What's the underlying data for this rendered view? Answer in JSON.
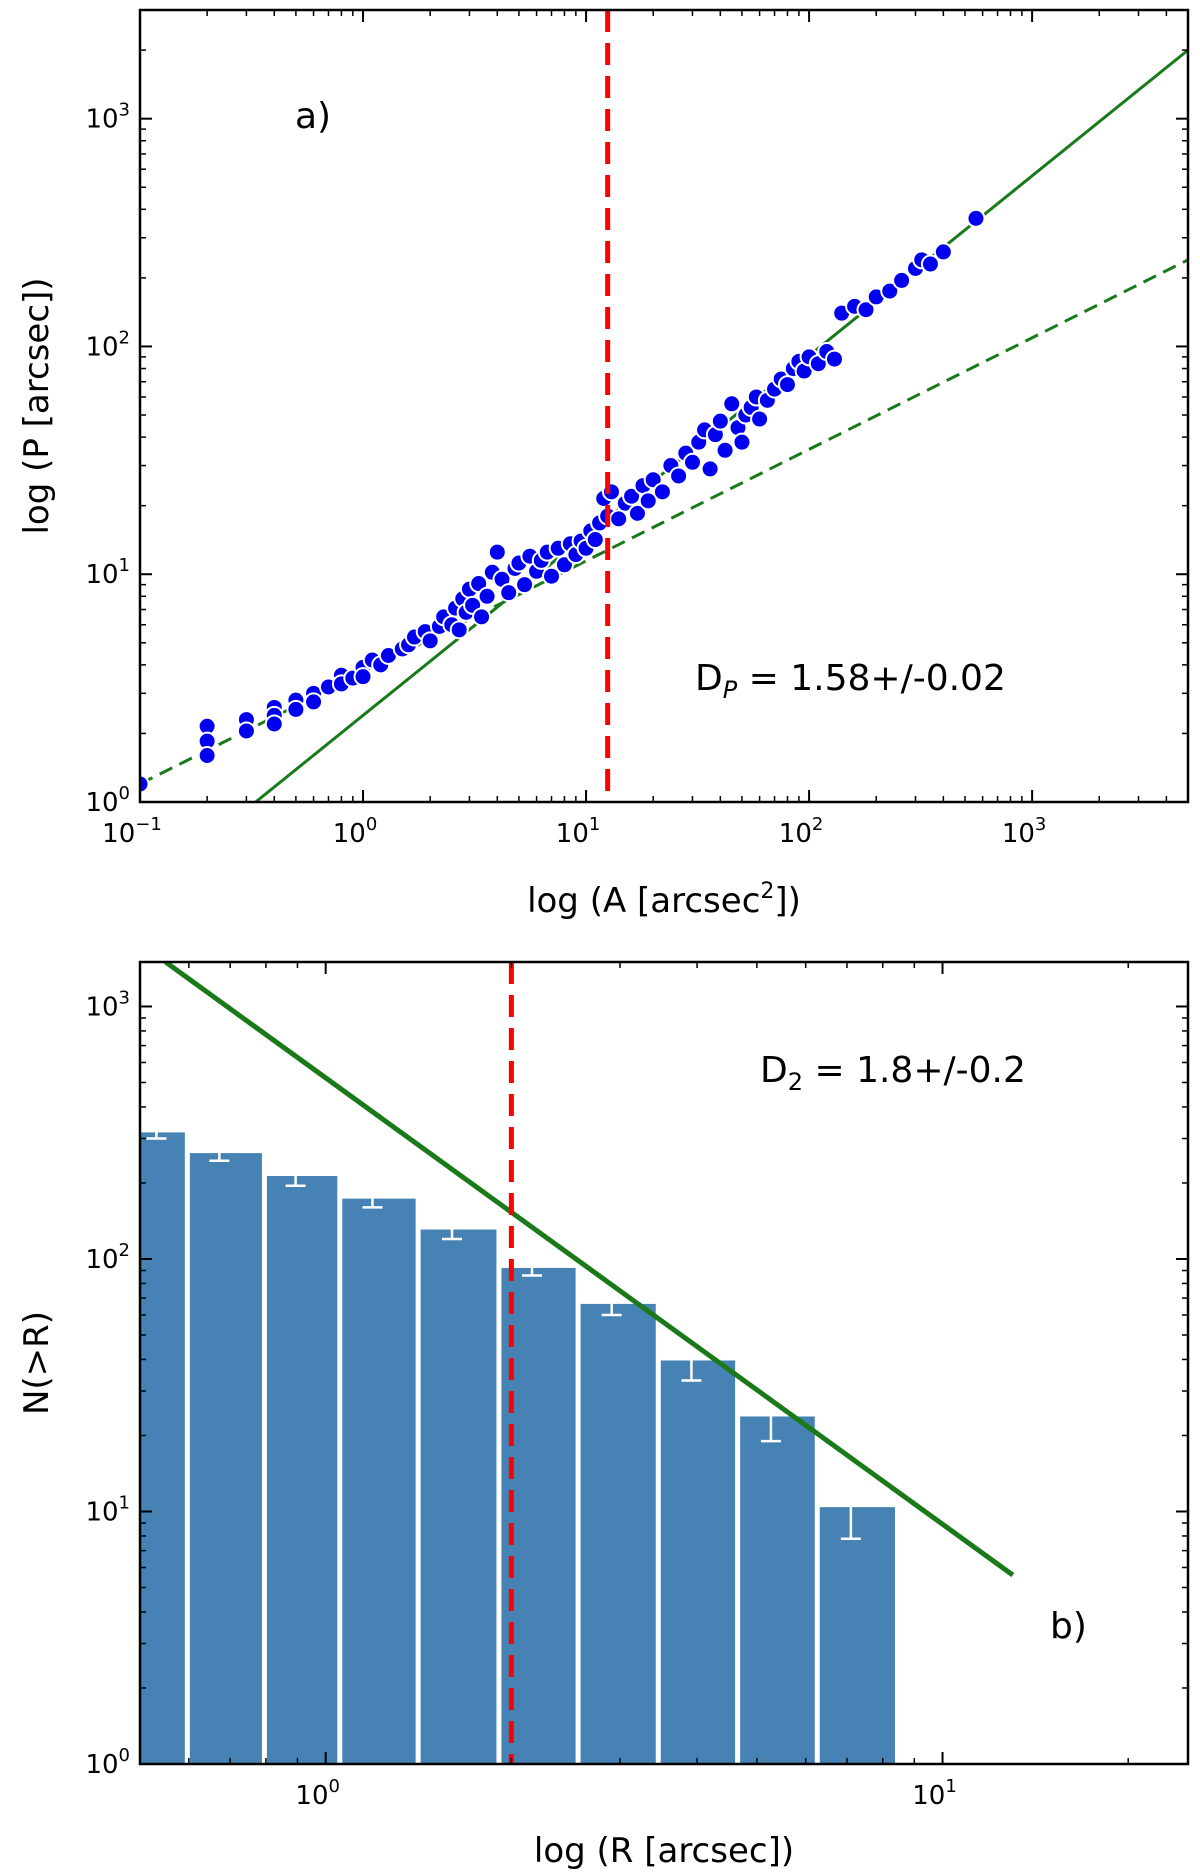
{
  "chart_data": [
    {
      "id": "a",
      "type": "scatter",
      "scale": {
        "x": "log",
        "y": "log"
      },
      "xlabel": "log (A [arcsec",
      "xlabel_sup": "2",
      "xlabel_tail": "])",
      "ylabel": "log (P [arcsec])",
      "xlim": [
        0.1,
        5000
      ],
      "ylim": [
        1,
        3000
      ],
      "xticks": [
        {
          "value": 0.1,
          "base": "10",
          "exp": "−1"
        },
        {
          "value": 1,
          "base": "10",
          "exp": "0"
        },
        {
          "value": 10,
          "base": "10",
          "exp": "1"
        },
        {
          "value": 100,
          "base": "10",
          "exp": "2"
        },
        {
          "value": 1000,
          "base": "10",
          "exp": "3"
        }
      ],
      "yticks": [
        {
          "value": 1,
          "base": "10",
          "exp": "0"
        },
        {
          "value": 10,
          "base": "10",
          "exp": "1"
        },
        {
          "value": 100,
          "base": "10",
          "exp": "2"
        },
        {
          "value": 1000,
          "base": "10",
          "exp": "3"
        }
      ],
      "panel_label": "a)",
      "annotation": {
        "main": "D",
        "sub": "P",
        "rest": " = 1.58+/-0.02"
      },
      "vline": {
        "x": 12.5,
        "color": "#ff0000",
        "style": "dashed"
      },
      "fits": [
        {
          "name": "fit-solid",
          "points": [
            [
              0.33,
              1.0
            ],
            [
              5000,
              2000
            ]
          ],
          "color": "#1a7a1a",
          "style": "solid"
        },
        {
          "name": "fit-dashed",
          "points": [
            [
              0.1,
              1.2
            ],
            [
              5000,
              240
            ]
          ],
          "color": "#1a7a1a",
          "style": "dashed"
        }
      ],
      "series": [
        {
          "name": "P-A points",
          "color": "#0000ee",
          "points": [
            [
              0.1,
              1.2
            ],
            [
              0.2,
              2.15
            ],
            [
              0.2,
              1.85
            ],
            [
              0.2,
              1.6
            ],
            [
              0.3,
              2.3
            ],
            [
              0.3,
              2.05
            ],
            [
              0.4,
              2.6
            ],
            [
              0.4,
              2.4
            ],
            [
              0.4,
              2.2
            ],
            [
              0.5,
              2.8
            ],
            [
              0.5,
              2.55
            ],
            [
              0.6,
              3.0
            ],
            [
              0.6,
              2.75
            ],
            [
              0.7,
              3.2
            ],
            [
              0.8,
              3.6
            ],
            [
              0.8,
              3.3
            ],
            [
              0.9,
              3.5
            ],
            [
              1.0,
              3.9
            ],
            [
              1.0,
              3.55
            ],
            [
              1.1,
              4.2
            ],
            [
              1.2,
              4.0
            ],
            [
              1.3,
              4.4
            ],
            [
              1.5,
              4.7
            ],
            [
              1.6,
              4.9
            ],
            [
              1.7,
              5.3
            ],
            [
              1.9,
              5.6
            ],
            [
              2.0,
              5.1
            ],
            [
              2.2,
              5.9
            ],
            [
              2.3,
              6.5
            ],
            [
              2.5,
              6.0
            ],
            [
              2.6,
              7.1
            ],
            [
              2.7,
              5.7
            ],
            [
              2.8,
              7.8
            ],
            [
              2.9,
              6.8
            ],
            [
              3.0,
              8.6
            ],
            [
              3.1,
              7.3
            ],
            [
              3.3,
              9.1
            ],
            [
              3.4,
              6.5
            ],
            [
              3.6,
              8.0
            ],
            [
              3.8,
              10.2
            ],
            [
              4.0,
              12.5
            ],
            [
              4.2,
              9.5
            ],
            [
              4.5,
              8.3
            ],
            [
              4.8,
              10.6
            ],
            [
              5.0,
              11.2
            ],
            [
              5.3,
              9.0
            ],
            [
              5.6,
              12.0
            ],
            [
              6.0,
              10.3
            ],
            [
              6.3,
              11.5
            ],
            [
              6.7,
              12.5
            ],
            [
              7.0,
              9.8
            ],
            [
              7.5,
              13.0
            ],
            [
              8.0,
              11.0
            ],
            [
              8.5,
              13.6
            ],
            [
              9.0,
              12.2
            ],
            [
              9.5,
              14.0
            ],
            [
              10.0,
              13.0
            ],
            [
              10.5,
              15.5
            ],
            [
              11.0,
              14.2
            ],
            [
              11.5,
              16.8
            ],
            [
              12.0,
              21.5
            ],
            [
              12.5,
              18.0
            ],
            [
              13.0,
              23.0
            ],
            [
              14.0,
              17.5
            ],
            [
              15.0,
              20.5
            ],
            [
              16.0,
              22.0
            ],
            [
              17.0,
              18.5
            ],
            [
              18.0,
              24.5
            ],
            [
              19.0,
              21.0
            ],
            [
              20.0,
              26.0
            ],
            [
              22.0,
              23.0
            ],
            [
              24.0,
              30.0
            ],
            [
              26.0,
              27.0
            ],
            [
              28.0,
              34.0
            ],
            [
              30.0,
              31.0
            ],
            [
              32.0,
              38.0
            ],
            [
              34.0,
              43.0
            ],
            [
              36.0,
              29.0
            ],
            [
              38.0,
              41.0
            ],
            [
              40.0,
              47.0
            ],
            [
              42.0,
              35.0
            ],
            [
              45.0,
              56.0
            ],
            [
              48.0,
              44.0
            ],
            [
              50.0,
              38.0
            ],
            [
              52.0,
              50.0
            ],
            [
              55.0,
              54.0
            ],
            [
              58.0,
              60.0
            ],
            [
              60.0,
              48.0
            ],
            [
              65.0,
              58.0
            ],
            [
              70.0,
              65.0
            ],
            [
              75.0,
              72.0
            ],
            [
              80.0,
              68.0
            ],
            [
              85.0,
              80.0
            ],
            [
              90.0,
              86.0
            ],
            [
              95.0,
              78.0
            ],
            [
              100.0,
              90.0
            ],
            [
              110.0,
              84.0
            ],
            [
              120.0,
              95.0
            ],
            [
              130.0,
              88.0
            ],
            [
              140.0,
              140.0
            ],
            [
              160.0,
              150.0
            ],
            [
              180.0,
              145.0
            ],
            [
              200.0,
              165.0
            ],
            [
              230.0,
              175.0
            ],
            [
              260.0,
              195.0
            ],
            [
              300.0,
              220.0
            ],
            [
              320.0,
              240.0
            ],
            [
              350.0,
              230.0
            ],
            [
              400.0,
              260.0
            ],
            [
              560.0,
              365.0
            ]
          ]
        }
      ]
    },
    {
      "id": "b",
      "type": "bar",
      "scale": {
        "x": "log",
        "y": "log"
      },
      "xlabel": "log (R [arcsec])",
      "ylabel": "N(>R)",
      "xlim": [
        0.5,
        25
      ],
      "ylim": [
        1,
        1500
      ],
      "xticks": [
        {
          "value": 1,
          "base": "10",
          "exp": "0"
        },
        {
          "value": 10,
          "base": "10",
          "exp": "1"
        }
      ],
      "yticks": [
        {
          "value": 1,
          "base": "10",
          "exp": "0"
        },
        {
          "value": 10,
          "base": "10",
          "exp": "1"
        },
        {
          "value": 100,
          "base": "10",
          "exp": "2"
        },
        {
          "value": 1000,
          "base": "10",
          "exp": "3"
        }
      ],
      "panel_label": "b)",
      "annotation": {
        "main": "D",
        "sub": "2",
        "rest": " = 1.8+/-0.2"
      },
      "vline": {
        "x": 2.0,
        "color": "#ff0000",
        "style": "dashed"
      },
      "fits": [
        {
          "name": "fit-line",
          "points": [
            [
              0.55,
              1500
            ],
            [
              13.0,
              5.6
            ]
          ],
          "color": "#1a7a1a",
          "style": "solid"
        }
      ],
      "bar_color": "#4682b4",
      "bars": [
        {
          "left": 0.5,
          "right": 0.6,
          "value": 320,
          "err_low": 300,
          "err_high": 335
        },
        {
          "left": 0.6,
          "right": 0.8,
          "value": 265,
          "err_low": 245,
          "err_high": 285
        },
        {
          "left": 0.8,
          "right": 1.06,
          "value": 215,
          "err_low": 195,
          "err_high": 235
        },
        {
          "left": 1.06,
          "right": 1.42,
          "value": 175,
          "err_low": 160,
          "err_high": 190
        },
        {
          "left": 1.42,
          "right": 1.92,
          "value": 132,
          "err_low": 120,
          "err_high": 145
        },
        {
          "left": 1.92,
          "right": 2.58,
          "value": 93,
          "err_low": 86,
          "err_high": 104
        },
        {
          "left": 2.58,
          "right": 3.48,
          "value": 67,
          "err_low": 60,
          "err_high": 75
        },
        {
          "left": 3.48,
          "right": 4.68,
          "value": 40,
          "err_low": 33,
          "err_high": 46
        },
        {
          "left": 4.68,
          "right": 6.3,
          "value": 24,
          "err_low": 19,
          "err_high": 28
        },
        {
          "left": 6.3,
          "right": 8.5,
          "value": 10.5,
          "err_low": 7.8,
          "err_high": 14
        }
      ]
    }
  ]
}
